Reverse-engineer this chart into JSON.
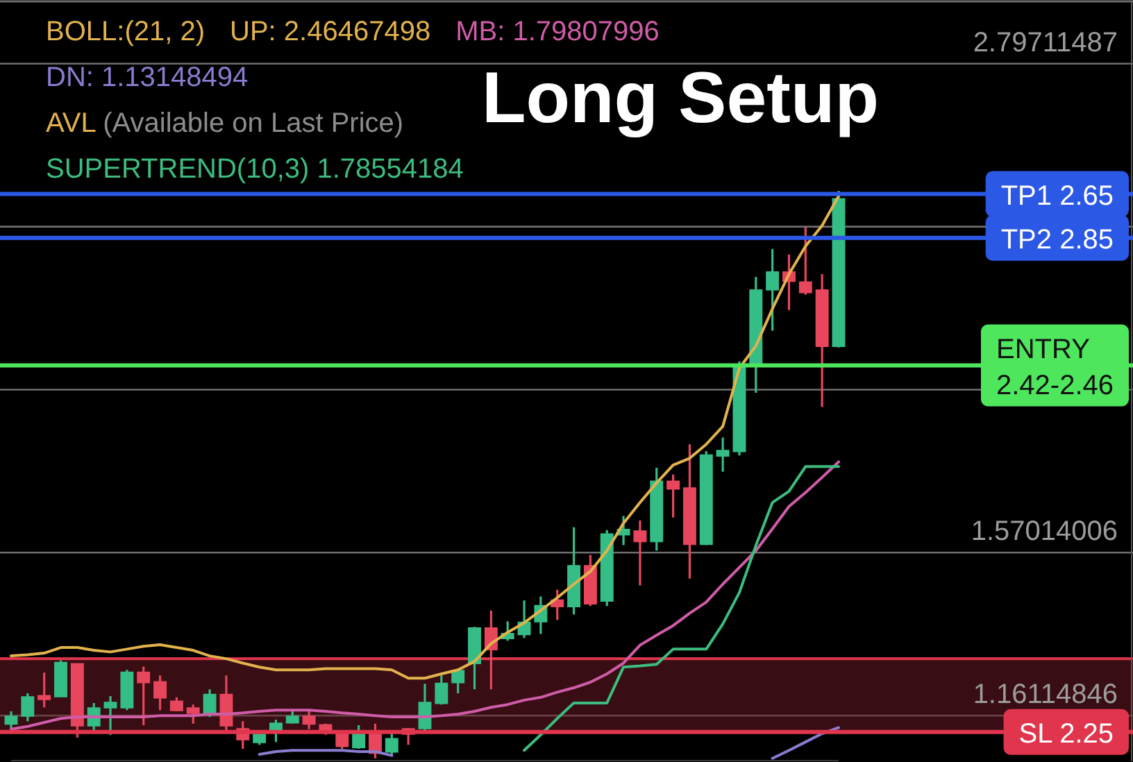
{
  "chart_data": {
    "type": "candlestick",
    "title": "Long Setup",
    "grid": "y",
    "tick_labels": "y",
    "annotations": [
      "BOLL:(21, 2)",
      "AVL (Available on Last Price)"
    ],
    "categories": [
      null,
      null,
      null,
      null,
      null,
      null,
      null,
      null,
      null,
      null,
      null,
      null,
      null,
      null,
      null,
      null,
      null,
      null,
      null,
      null,
      null,
      null,
      null,
      null,
      null,
      null,
      null,
      null,
      null,
      null,
      null,
      null,
      null,
      null,
      null,
      null,
      null,
      null,
      null,
      null,
      null,
      null,
      null,
      null,
      null,
      null,
      null,
      null,
      null,
      null,
      null
    ],
    "ylim": [
      1.0465,
      2.9534
    ],
    "yticks": [
      1.16114846,
      1.57014006,
      {
        "value": 1.97913166,
        "label": null
      },
      {
        "value": 2.38812327,
        "label": null
      },
      2.79711487
    ],
    "ohlc": [
      [
        1.141,
        1.172,
        1.13,
        1.158
      ],
      [
        1.161,
        1.217,
        1.147,
        1.207
      ],
      [
        1.21,
        1.269,
        1.182,
        1.203
      ],
      [
        1.21,
        1.3,
        1.207,
        1.293
      ],
      [
        1.29,
        1.293,
        1.106,
        1.137
      ],
      [
        1.137,
        1.193,
        1.123,
        1.179
      ],
      [
        1.182,
        1.21,
        1.113,
        1.193
      ],
      [
        1.182,
        1.276,
        1.175,
        1.269
      ],
      [
        1.269,
        1.284,
        1.137,
        1.245
      ],
      [
        1.245,
        1.262,
        1.175,
        1.207
      ],
      [
        1.196,
        1.207,
        1.172,
        1.175
      ],
      [
        1.179,
        1.189,
        1.141,
        1.168
      ],
      [
        1.168,
        1.227,
        1.158,
        1.213
      ],
      [
        1.213,
        1.262,
        1.123,
        1.137
      ],
      [
        1.127,
        1.147,
        1.078,
        1.102
      ],
      [
        1.095,
        1.123,
        1.088,
        1.113
      ],
      [
        1.123,
        1.151,
        1.095,
        1.141
      ],
      [
        1.144,
        1.172,
        1.141,
        1.158
      ],
      [
        1.158,
        1.172,
        1.127,
        1.141
      ],
      [
        1.137,
        1.141,
        1.113,
        1.12
      ],
      [
        1.116,
        1.123,
        1.078,
        1.085
      ],
      [
        1.082,
        1.137,
        1.078,
        1.116
      ],
      [
        1.12,
        1.141,
        1.054,
        1.068
      ],
      [
        1.071,
        1.123,
        1.061,
        1.102
      ],
      [
        1.127,
        1.13,
        1.088,
        1.116
      ],
      [
        1.13,
        1.241,
        1.12,
        1.193
      ],
      [
        1.193,
        1.262,
        1.189,
        1.241
      ],
      [
        1.245,
        1.279,
        1.217,
        1.273
      ],
      [
        1.293,
        1.384,
        1.227,
        1.38
      ],
      [
        1.38,
        1.425,
        1.227,
        1.328
      ],
      [
        1.356,
        1.398,
        1.349,
        1.366
      ],
      [
        1.366,
        1.45,
        1.356,
        1.394
      ],
      [
        1.398,
        1.46,
        1.366,
        1.436
      ],
      [
        1.45,
        1.477,
        1.401,
        1.436
      ],
      [
        1.436,
        1.634,
        1.415,
        1.536
      ],
      [
        1.536,
        1.564,
        1.436,
        1.443
      ],
      [
        1.45,
        1.627,
        1.436,
        1.616
      ],
      [
        1.616,
        1.662,
        1.589,
        1.627
      ],
      [
        1.623,
        1.651,
        1.488,
        1.599
      ],
      [
        1.599,
        1.783,
        1.575,
        1.748
      ],
      [
        1.748,
        1.766,
        1.658,
        1.731
      ],
      [
        1.731,
        1.842,
        1.505,
        1.592
      ],
      [
        1.592,
        1.825,
        1.589,
        1.814
      ],
      [
        1.814,
        1.859,
        1.773,
        1.825
      ],
      [
        1.825,
        2.05,
        1.814,
        2.04
      ],
      [
        2.044,
        2.262,
        1.971,
        2.228
      ],
      [
        2.231,
        2.332,
        2.127,
        2.273
      ],
      [
        2.273,
        2.318,
        2.179,
        2.252
      ],
      [
        2.248,
        2.387,
        2.217,
        2.224
      ],
      [
        2.228,
        2.269,
        1.936,
        2.089
      ],
      [
        2.089,
        2.478,
        2.085,
        2.457
      ]
    ],
    "colors": [
      "#35bd86",
      "#35bd86",
      "#e8465c",
      "#35bd86",
      "#e8465c",
      "#35bd86",
      "#35bd86",
      "#35bd86",
      "#e8465c",
      "#e8465c",
      "#e8465c",
      "#e8465c",
      "#35bd86",
      "#e8465c",
      "#e8465c",
      "#35bd86",
      "#35bd86",
      "#35bd86",
      "#e8465c",
      "#e8465c",
      "#e8465c",
      "#35bd86",
      "#e8465c",
      "#35bd86",
      "#e8465c",
      "#35bd86",
      "#35bd86",
      "#35bd86",
      "#35bd86",
      "#e8465c",
      "#35bd86",
      "#35bd86",
      "#35bd86",
      "#e8465c",
      "#35bd86",
      "#e8465c",
      "#35bd86",
      "#35bd86",
      "#e8465c",
      "#35bd86",
      "#e8465c",
      "#e8465c",
      "#35bd86",
      "#35bd86",
      "#35bd86",
      "#35bd86",
      "#35bd86",
      "#e8465c",
      "#e8465c",
      "#e8465c",
      "#35bd86"
    ],
    "series": [
      {
        "name": "UP: 2.46467498",
        "type": "line",
        "color": "#e2b24c",
        "values": [
          1.311,
          1.314,
          1.318,
          1.332,
          1.332,
          1.325,
          1.321,
          1.328,
          1.335,
          1.339,
          1.332,
          1.325,
          1.311,
          1.304,
          1.293,
          1.283,
          1.276,
          1.276,
          1.276,
          1.279,
          1.279,
          1.279,
          1.279,
          1.276,
          1.255,
          1.255,
          1.266,
          1.276,
          1.297,
          1.342,
          1.37,
          1.394,
          1.425,
          1.457,
          1.491,
          1.523,
          1.575,
          1.644,
          1.696,
          1.745,
          1.79,
          1.807,
          1.842,
          1.887,
          2.033,
          2.089,
          2.182,
          2.269,
          2.339,
          2.391,
          2.465
        ]
      },
      {
        "name": "MB: 1.79807996",
        "type": "line",
        "color": "#cf5ca8",
        "values": [
          1.127,
          1.134,
          1.144,
          1.154,
          1.158,
          1.158,
          1.158,
          1.158,
          1.158,
          1.161,
          1.161,
          1.161,
          1.165,
          1.165,
          1.168,
          1.172,
          1.175,
          1.175,
          1.175,
          1.172,
          1.168,
          1.165,
          1.161,
          1.158,
          1.158,
          1.158,
          1.161,
          1.165,
          1.172,
          1.182,
          1.189,
          1.2,
          1.207,
          1.22,
          1.231,
          1.245,
          1.266,
          1.293,
          1.338,
          1.363,
          1.387,
          1.418,
          1.446,
          1.491,
          1.533,
          1.575,
          1.63,
          1.686,
          1.721,
          1.759,
          1.798
        ]
      },
      {
        "name": "DN: 1.13148494",
        "type": "line",
        "color": "#8a7cce",
        "values": [
          null,
          null,
          null,
          null,
          null,
          null,
          null,
          null,
          null,
          null,
          null,
          null,
          null,
          null,
          null,
          1.064,
          1.071,
          1.074,
          1.074,
          1.074,
          1.074,
          1.071,
          1.071,
          1.061,
          null,
          null,
          null,
          null,
          null,
          null,
          null,
          null,
          null,
          null,
          null,
          null,
          null,
          null,
          null,
          null,
          null,
          null,
          null,
          null,
          null,
          null,
          1.054,
          1.074,
          1.095,
          1.116,
          1.131
        ]
      },
      {
        "name": "SUPERTREND(10,3) 1.78554184",
        "type": "line",
        "color": "#3cbc7e",
        "values": [
          null,
          null,
          null,
          null,
          null,
          null,
          null,
          null,
          null,
          null,
          null,
          null,
          null,
          null,
          null,
          null,
          null,
          null,
          null,
          null,
          null,
          null,
          null,
          null,
          null,
          null,
          null,
          null,
          null,
          null,
          null,
          1.074,
          1.113,
          1.154,
          1.193,
          1.193,
          1.193,
          1.283,
          1.286,
          1.29,
          1.328,
          1.328,
          1.328,
          1.391,
          1.47,
          1.588,
          1.696,
          1.724,
          1.786,
          1.786,
          1.786
        ]
      }
    ],
    "ref_lines": [
      {
        "axis": "y",
        "value": 2.47,
        "label": "TP1 2.65",
        "color": "#2c58e6"
      },
      {
        "axis": "y",
        "value": 2.36,
        "label": "TP2 2.85",
        "color": "#2c58e6"
      },
      {
        "axis": "y",
        "value": 2.04,
        "label": "ENTRY 2.42-2.46",
        "color": "#4ee65c"
      },
      {
        "axis": "y",
        "value": 1.12,
        "label": "SL 2.25",
        "color": "#e0354c"
      }
    ],
    "bands": [
      {
        "axis": "y",
        "from": 1.12,
        "to": 1.304,
        "color": "#e0354c"
      }
    ]
  }
}
